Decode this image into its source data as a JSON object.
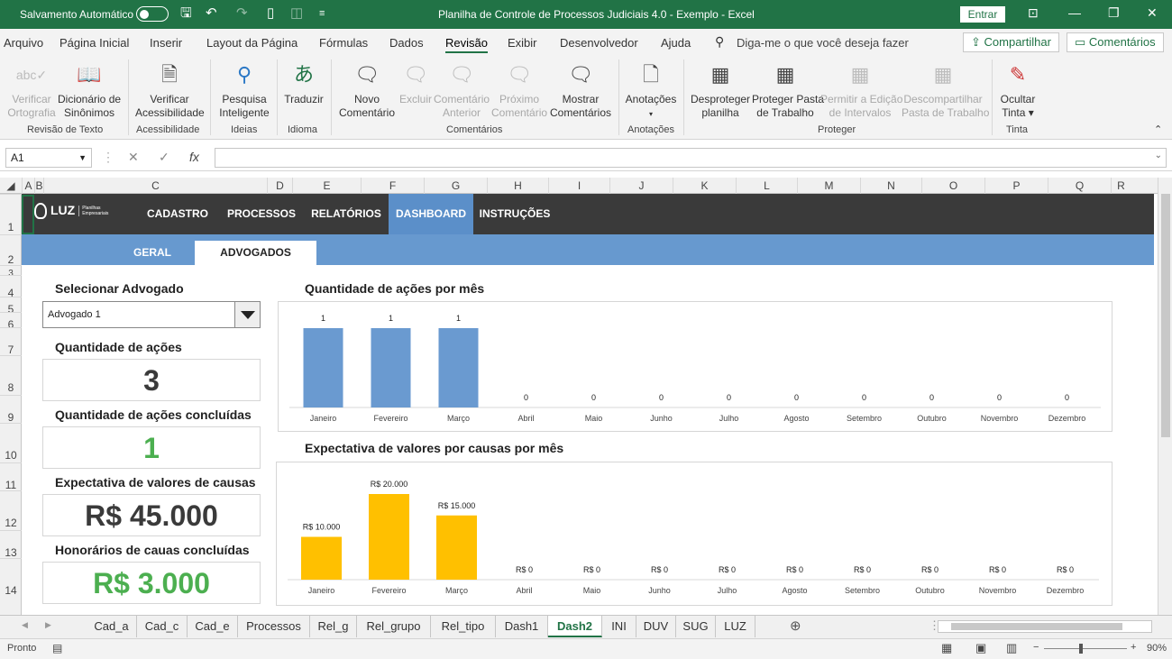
{
  "title_bar": {
    "autosave_label": "Salvamento Automático",
    "document_title": "Planilha de Controle de Processos Judiciais 4.0 - Exemplo  -  Excel",
    "signin_label": "Entrar"
  },
  "menu": {
    "tabs": [
      "Arquivo",
      "Página Inicial",
      "Inserir",
      "Layout da Página",
      "Fórmulas",
      "Dados",
      "Revisão",
      "Exibir",
      "Desenvolvedor",
      "Ajuda"
    ],
    "active_tab": "Revisão",
    "tell_me": "Diga-me o que você deseja fazer",
    "share_label": "Compartilhar",
    "comments_label": "Comentários"
  },
  "ribbon": {
    "buttons": [
      {
        "l1": "Verificar",
        "l2": "Ortografia",
        "icon": "abc-check-icon",
        "disabled": true
      },
      {
        "l1": "Dicionário de",
        "l2": "Sinônimos",
        "icon": "book-icon",
        "disabled": false
      },
      {
        "l1": "Verificar",
        "l2": "Acessibilidade",
        "icon": "accessibility-icon",
        "disabled": false
      },
      {
        "l1": "Pesquisa",
        "l2": "Inteligente",
        "icon": "smart-lookup-icon",
        "disabled": false
      },
      {
        "l1": "Traduzir",
        "l2": "",
        "icon": "translate-icon",
        "disabled": false
      },
      {
        "l1": "Novo",
        "l2": "Comentário",
        "icon": "new-comment-icon",
        "disabled": false
      },
      {
        "l1": "Excluir",
        "l2": "",
        "icon": "delete-comment-icon",
        "disabled": true
      },
      {
        "l1": "Comentário",
        "l2": "Anterior",
        "icon": "previous-comment-icon",
        "disabled": true
      },
      {
        "l1": "Próximo",
        "l2": "Comentário",
        "icon": "next-comment-icon",
        "disabled": true
      },
      {
        "l1": "Mostrar",
        "l2": "Comentários",
        "icon": "show-comments-icon",
        "disabled": false
      },
      {
        "l1": "Anotações",
        "l2": "▾",
        "icon": "notes-icon",
        "disabled": false
      },
      {
        "l1": "Desproteger",
        "l2": "planilha",
        "icon": "unprotect-sheet-icon",
        "disabled": false
      },
      {
        "l1": "Proteger Pasta",
        "l2": "de Trabalho",
        "icon": "protect-workbook-icon",
        "disabled": false
      },
      {
        "l1": "Permitir a Edição",
        "l2": "de Intervalos",
        "icon": "allow-edit-ranges-icon",
        "disabled": true
      },
      {
        "l1": "Descompartilhar",
        "l2": "Pasta de Trabalho",
        "icon": "unshare-workbook-icon",
        "disabled": true
      },
      {
        "l1": "Ocultar",
        "l2": "Tinta ▾",
        "icon": "hide-ink-icon",
        "disabled": false
      }
    ],
    "groups": [
      "Revisão de Texto",
      "Acessibilidade",
      "Ideias",
      "Idioma",
      "Comentários",
      "Anotações",
      "Proteger",
      "Tinta"
    ]
  },
  "formula_bar": {
    "name_box": "A1",
    "formula": ""
  },
  "columns": [
    "A",
    "B",
    "C",
    "D",
    "E",
    "F",
    "G",
    "H",
    "I",
    "J",
    "K",
    "L",
    "M",
    "N",
    "O",
    "P",
    "Q",
    "R"
  ],
  "rows": [
    "1",
    "2",
    "3",
    "4",
    "5",
    "6",
    "7",
    "8",
    "9",
    "10",
    "11",
    "12",
    "13",
    "14"
  ],
  "dashboard": {
    "brand": "LUZ",
    "brand_sub": "Planilhas Empresariais",
    "nav": [
      "CADASTRO",
      "PROCESSOS",
      "RELATÓRIOS",
      "DASHBOARD",
      "INSTRUÇÕES"
    ],
    "subnav": [
      "GERAL",
      "ADVOGADOS"
    ],
    "select_label": "Selecionar Advogado",
    "selected_lawyer": "Advogado 1",
    "kpis": [
      {
        "label": "Quantidade de ações",
        "value": "3",
        "color": "#3a3a3a"
      },
      {
        "label": "Quantidade de ações concluídas",
        "value": "1",
        "color": "#4caf50"
      },
      {
        "label": "Expectativa de valores de causas",
        "value": "R$ 45.000",
        "color": "#3a3a3a"
      },
      {
        "label": "Honorários de cauas concluídas",
        "value": "R$ 3.000",
        "color": "#4caf50"
      }
    ],
    "accent_nav": "#3a3a3a",
    "accent_subnav": "#6799cf"
  },
  "chart_data": [
    {
      "type": "bar",
      "title": "Quantidade de ações por mês",
      "categories": [
        "Janeiro",
        "Fevereiro",
        "Março",
        "Abril",
        "Maio",
        "Junho",
        "Julho",
        "Agosto",
        "Setembro",
        "Outubro",
        "Novembro",
        "Dezembro"
      ],
      "values": [
        1,
        1,
        1,
        0,
        0,
        0,
        0,
        0,
        0,
        0,
        0,
        0
      ],
      "data_labels": [
        "1",
        "1",
        "1",
        "0",
        "0",
        "0",
        "0",
        "0",
        "0",
        "0",
        "0",
        "0"
      ],
      "color": "#6a9ad0",
      "grid": false
    },
    {
      "type": "bar",
      "title": "Expectativa de valores por causas por mês",
      "categories": [
        "Janeiro",
        "Fevereiro",
        "Março",
        "Abril",
        "Maio",
        "Junho",
        "Julho",
        "Agosto",
        "Setembro",
        "Outubro",
        "Novembro",
        "Dezembro"
      ],
      "values": [
        10000,
        20000,
        15000,
        0,
        0,
        0,
        0,
        0,
        0,
        0,
        0,
        0
      ],
      "data_labels": [
        "R$ 10.000",
        "R$ 20.000",
        "R$ 15.000",
        "R$ 0",
        "R$ 0",
        "R$ 0",
        "R$ 0",
        "R$ 0",
        "R$ 0",
        "R$ 0",
        "R$ 0",
        "R$ 0"
      ],
      "color": "#ffc000",
      "grid": false
    }
  ],
  "sheet_tabs": [
    "Cad_a",
    "Cad_c",
    "Cad_e",
    "Processos",
    "Rel_g",
    "Rel_grupo",
    "Rel_tipo",
    "Dash1",
    "Dash2",
    "INI",
    "DUV",
    "SUG",
    "LUZ"
  ],
  "active_sheet": "Dash2",
  "status": {
    "ready": "Pronto",
    "zoom": "90%"
  }
}
